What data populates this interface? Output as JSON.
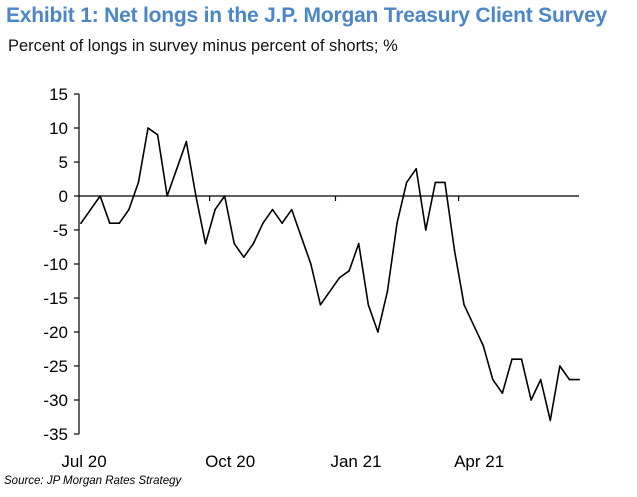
{
  "exhibit": {
    "title": "Exhibit 1: Net longs in the J.P. Morgan Treasury Client Survey",
    "subtitle": "Percent of longs in survey minus percent of shorts; %",
    "source": "Source: JP Morgan Rates Strategy"
  },
  "colors": {
    "title": "#4a86c8",
    "line": "#000000",
    "axis": "#000000",
    "text": "#000000"
  },
  "chart_data": {
    "type": "line",
    "title": "Exhibit 1: Net longs in the J.P. Morgan Treasury Client Survey",
    "subtitle": "Percent of longs in survey minus percent of shorts; %",
    "xlabel": "",
    "ylabel": "",
    "ylim": [
      -35,
      15
    ],
    "y_ticks": [
      15,
      10,
      5,
      0,
      -5,
      -10,
      -15,
      -20,
      -25,
      -30,
      -35
    ],
    "x_tick_labels": [
      "Jul 20",
      "Oct 20",
      "Jan 21",
      "Apr 21"
    ],
    "x_range": [
      "2020-06-29",
      "2021-06-28"
    ],
    "grid": false,
    "legend": "none",
    "series": [
      {
        "name": "",
        "x": [
          "2020-06-29",
          "2020-07-06",
          "2020-07-13",
          "2020-07-20",
          "2020-07-27",
          "2020-08-03",
          "2020-08-10",
          "2020-08-17",
          "2020-08-24",
          "2020-08-31",
          "2020-09-07",
          "2020-09-14",
          "2020-09-21",
          "2020-09-28",
          "2020-10-05",
          "2020-10-12",
          "2020-10-19",
          "2020-10-26",
          "2020-11-02",
          "2020-11-09",
          "2020-11-16",
          "2020-11-23",
          "2020-11-30",
          "2020-12-07",
          "2020-12-14",
          "2020-12-21",
          "2021-01-04",
          "2021-01-11",
          "2021-01-18",
          "2021-01-25",
          "2021-02-01",
          "2021-02-08",
          "2021-02-15",
          "2021-02-22",
          "2021-03-01",
          "2021-03-08",
          "2021-03-15",
          "2021-03-22",
          "2021-03-29",
          "2021-04-05",
          "2021-04-12",
          "2021-04-19",
          "2021-04-26",
          "2021-05-03",
          "2021-05-10",
          "2021-05-17",
          "2021-05-24",
          "2021-05-31",
          "2021-06-07",
          "2021-06-14",
          "2021-06-21",
          "2021-06-28"
        ],
        "y": [
          -4,
          -2,
          0,
          -4,
          -4,
          -2,
          2,
          10,
          9,
          0,
          4,
          8,
          0,
          -7,
          -2,
          0,
          -7,
          -9,
          -7,
          -4,
          -2,
          -4,
          -2,
          -6,
          -10,
          -16,
          -12,
          -11,
          -7,
          -16,
          -20,
          -14,
          -4,
          2,
          4,
          -5,
          2,
          2,
          -8,
          -16,
          -19,
          -22,
          -27,
          -29,
          -24,
          -24,
          -30,
          -27,
          -33,
          -25,
          -27,
          -27
        ]
      }
    ]
  }
}
